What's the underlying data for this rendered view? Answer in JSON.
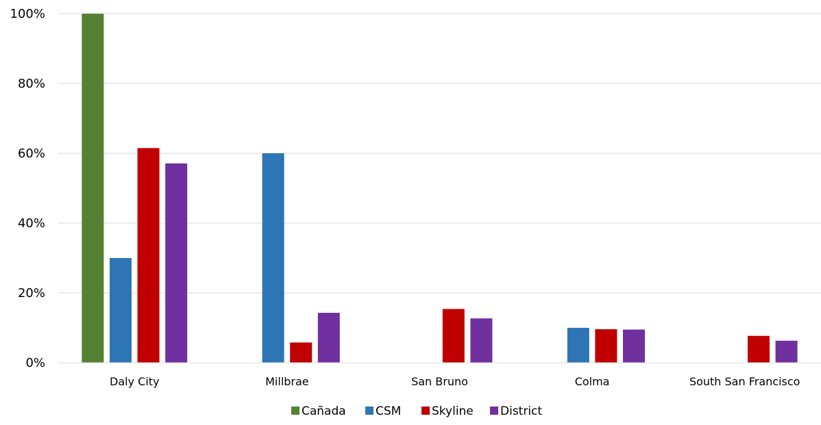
{
  "chart_data": {
    "type": "bar",
    "title": "",
    "xlabel": "",
    "ylabel": "",
    "categories": [
      "Daly City",
      "Millbrae",
      "San Bruno",
      "Colma",
      "South San Francisco"
    ],
    "series": [
      {
        "name": "Cañada",
        "color": "#548235",
        "values": [
          100,
          0,
          0,
          0,
          0
        ]
      },
      {
        "name": "CSM",
        "color": "#2e75b6",
        "values": [
          30,
          60,
          0,
          10,
          0
        ]
      },
      {
        "name": "Skyline",
        "color": "#c00000",
        "values": [
          61.5,
          5.8,
          15.4,
          9.6,
          7.7
        ]
      },
      {
        "name": "District",
        "color": "#7030a0",
        "values": [
          57.1,
          14.3,
          12.7,
          9.5,
          6.3
        ]
      }
    ],
    "ylim": [
      0,
      100
    ],
    "yticks": [
      "0%",
      "20%",
      "40%",
      "60%",
      "80%",
      "100%"
    ],
    "ytick_values": [
      0,
      20,
      40,
      60,
      80,
      100
    ],
    "grid": true,
    "legend_position": "bottom"
  }
}
